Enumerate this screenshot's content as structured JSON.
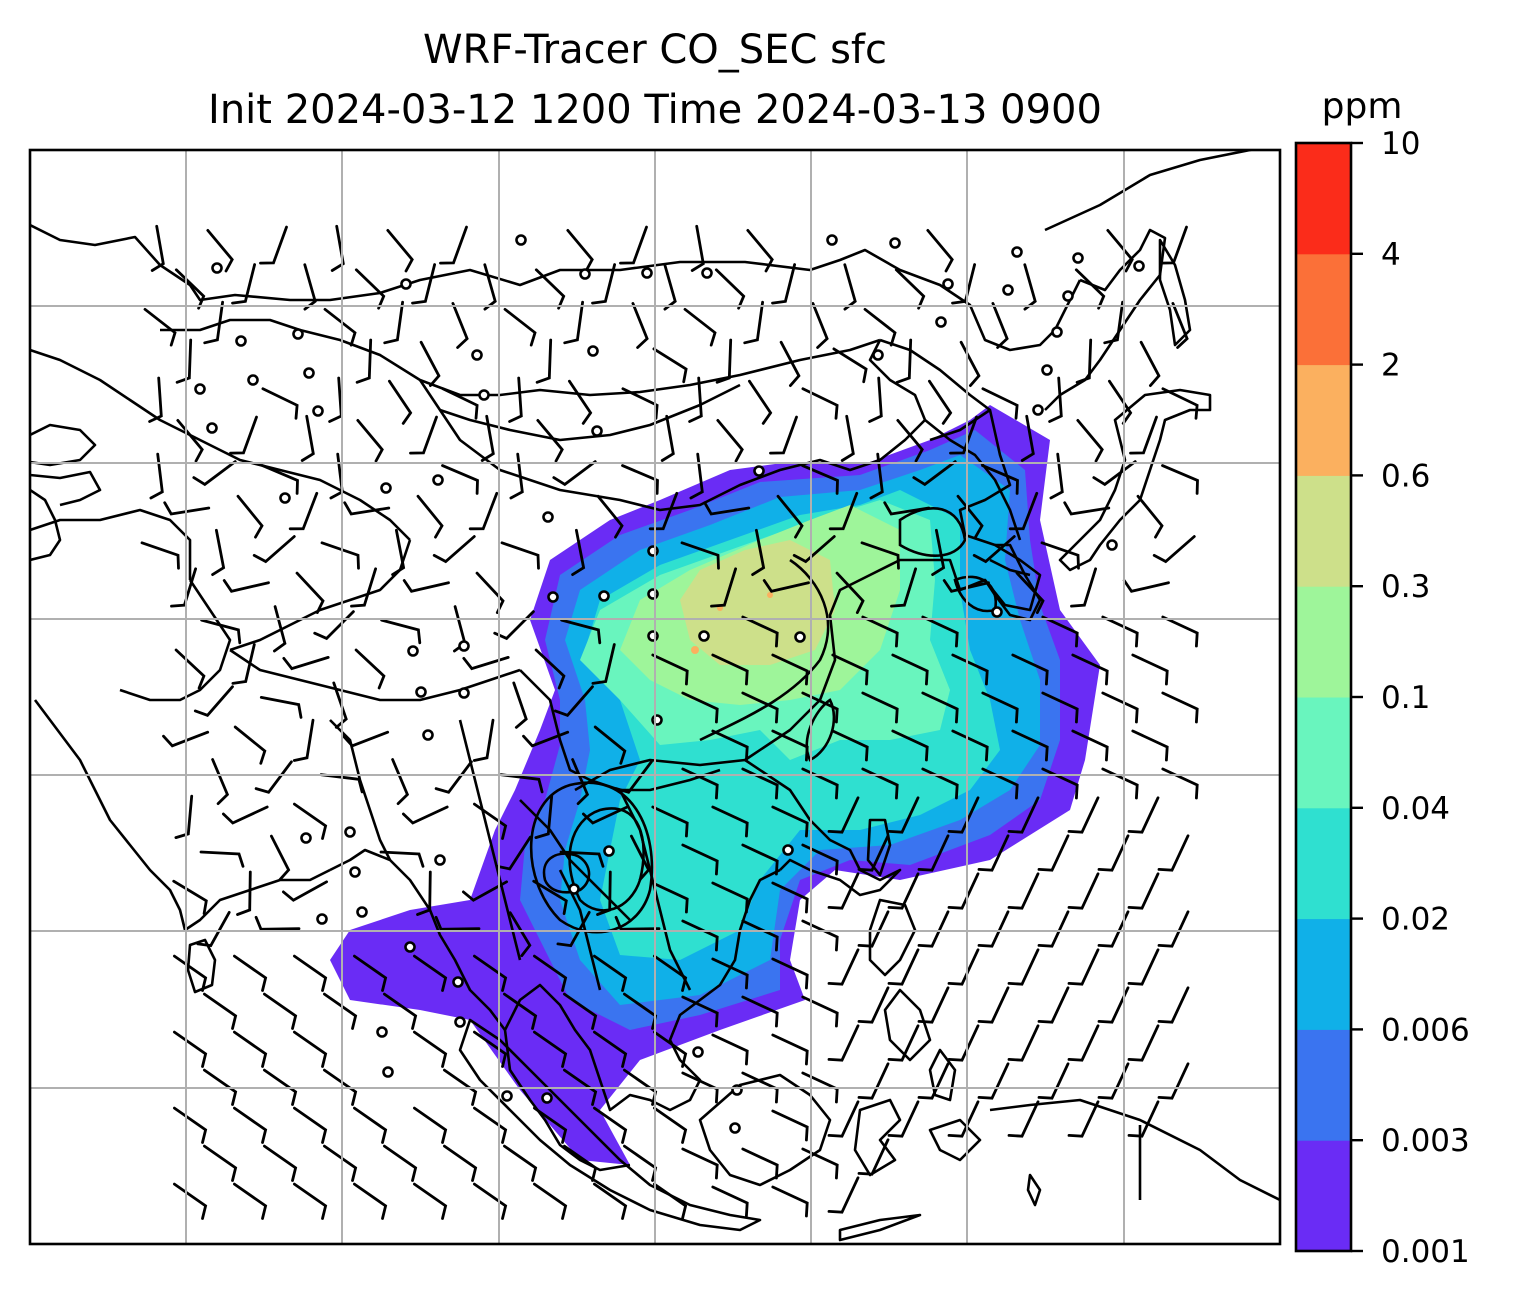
{
  "title": {
    "line1": "WRF-Tracer CO_SEC sfc",
    "line2": "Init 2024-03-12 1200 Time 2024-03-13 0900"
  },
  "colorbar": {
    "unit": "ppm",
    "levels": [
      "0.001",
      "0.003",
      "0.006",
      "0.02",
      "0.04",
      "0.1",
      "0.3",
      "0.6",
      "2",
      "4",
      "10"
    ],
    "colors": [
      "#6a2cf5",
      "#3a74f0",
      "#10b0e8",
      "#2fe0d0",
      "#69f5be",
      "#9ef59a",
      "#cde08a",
      "#fbb05f",
      "#fb7038",
      "#fb2c1a"
    ]
  },
  "map": {
    "grid": true,
    "features": [
      "coastlines",
      "country-borders",
      "tracer-concentration-fill",
      "concentration-contours",
      "wind-barbs",
      "calm-wind-circles"
    ]
  }
}
